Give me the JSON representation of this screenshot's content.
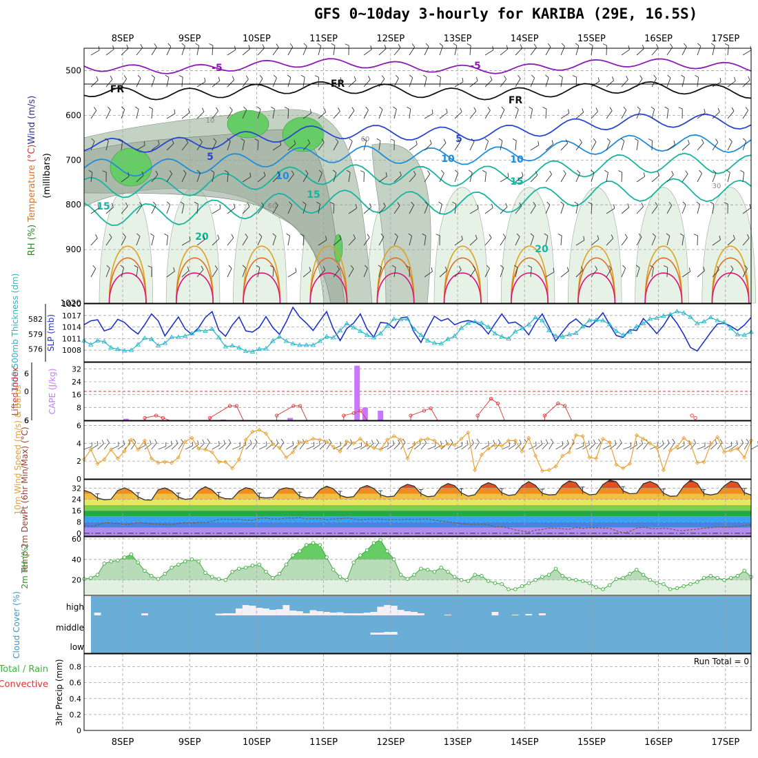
{
  "title": "GFS 0~10day 3-hourly for KARIBA (29E, 16.5S)",
  "dates": [
    "8SEP",
    "9SEP",
    "10SEP",
    "11SEP",
    "12SEP",
    "13SEP",
    "14SEP",
    "15SEP",
    "16SEP",
    "17SEP"
  ],
  "colors": {
    "grid": "#a0a0a0",
    "rh_light": "#e6f2e6",
    "rh_mid": "#c4d2c4",
    "rh_dark": "#9aa89a",
    "rh_green": "#66cc66",
    "temp_purple": "#8a1ab5",
    "temp_blue": "#2846d2",
    "temp_lightblue": "#1e8cdc",
    "temp_teal": "#14b4a0",
    "temp_orange": "#e0a020",
    "temp_red": "#e07020",
    "temp_magenta": "#dc1478",
    "slp": "#1e32c8",
    "thickness": "#28b4c8",
    "cape": "#c878ff",
    "lifted": "#e03030",
    "wind10m": "#e8a030",
    "rh2m": "#3caa3c",
    "cloud": "#6aaed8",
    "precip_total": "#3cb43c",
    "precip_conv": "#e03030"
  },
  "chart_data": [
    {
      "type": "heatmap",
      "panel": "cross-section",
      "ylabel_parts": [
        {
          "text": "RH (%)",
          "color": "#2c8c2c"
        },
        {
          "text": " Temperature",
          "color": "#e07020"
        },
        {
          "text": " (°C)",
          "color": "#e03030"
        },
        {
          "text": "Wind (m/s)",
          "color": "#3030a0"
        }
      ],
      "ylabel_unit": "(millibars)",
      "yticks": [
        500,
        600,
        700,
        800,
        900,
        1020
      ],
      "ylim": [
        1020,
        450
      ],
      "temperature_contours": [
        {
          "label": "-5",
          "level": 490,
          "color": "#8a1ab5"
        },
        {
          "label": "FR",
          "level": 545,
          "color": "#111111"
        },
        {
          "label": "5",
          "level": 665,
          "color": "#2846d2"
        },
        {
          "label": "10",
          "level": 715,
          "color": "#1e8cdc"
        },
        {
          "label": "15",
          "level": 760,
          "color": "#14b4a0"
        },
        {
          "label": "20",
          "level": 820,
          "color": "#14b4a0"
        }
      ],
      "contour_labels": [
        "-5",
        "-5",
        "FR",
        "FR",
        "FR",
        "5",
        "5",
        "10",
        "10",
        "10",
        "15",
        "15",
        "15",
        "20",
        "20",
        "10",
        "60",
        "60",
        "30"
      ]
    },
    {
      "type": "line",
      "panel": "slp-thickness",
      "ylabel_left": "1000-500mb Thickness (dm)",
      "ylabel_right": "SLP (mb)",
      "left_ticks": [
        576,
        579,
        582
      ],
      "right_ticks": [
        1008,
        1011,
        1014,
        1017,
        1020
      ],
      "series": [
        {
          "name": "SLP (mb)",
          "values": [
            1014.6,
            1015.6,
            1015.9,
            1013.0,
            1013.6,
            1016.0,
            1015.2,
            1013.5,
            1012.2,
            1014.6,
            1017.4,
            1015.6,
            1011.7,
            1014.2,
            1016.6,
            1013.5,
            1012.1,
            1013.8,
            1016.5,
            1018.0,
            1013.2,
            1011.6,
            1014.5,
            1016.6,
            1013.0,
            1012.7,
            1013.9,
            1016.7,
            1013.9,
            1012.1,
            1015.3,
            1019.1,
            1016.6,
            1015.0,
            1013.1,
            1015.6,
            1018.0,
            1013.5,
            1010.5,
            1013.6,
            1015.0,
            1017.4,
            1013.5,
            1011.4,
            1015.2,
            1015.0,
            1013.7,
            1016.4,
            1016.6,
            1012.6,
            1010.0,
            1013.6,
            1016.8,
            1015.6,
            1016.2,
            1014.6,
            1015.3,
            1015.7,
            1015.3,
            1014.3,
            1012.2,
            1014.9,
            1017.4,
            1015.0,
            1015.3,
            1014.1,
            1012.0,
            1015.1,
            1017.4,
            1014.0,
            1010.4,
            1012.7,
            1014.9,
            1016.1,
            1014.5,
            1014.0,
            1015.6,
            1017.7,
            1014.6,
            1011.8,
            1011.3,
            1013.3,
            1013.1,
            1016.2,
            1014.4,
            1012.3,
            1014.4,
            1017.2,
            1015.0,
            1012.1,
            1008.7,
            1007.8,
            1010.2,
            1012.6,
            1014.8,
            1015.0,
            1014.2,
            1013.1,
            1014.5,
            1016.5
          ]
        },
        {
          "name": "1000-500mb Thickness (dm)",
          "values": [
            577.7,
            576.9,
            577.7,
            577.5,
            576.3,
            576.0,
            575.7,
            575.8,
            576.9,
            578.2,
            578.0,
            576.7,
            577.2,
            578.4,
            578.4,
            578.6,
            579.1,
            579.8,
            579.6,
            580.0,
            578.3,
            576.5,
            576.7,
            576.3,
            575.6,
            575.5,
            576.0,
            576.1,
            577.6,
            578.5,
            577.6,
            577.1,
            576.8,
            576.8,
            576.8,
            577.6,
            578.5,
            578.3,
            579.7,
            581.1,
            580.3,
            579.6,
            578.8,
            578.3,
            579.1,
            580.6,
            582.0,
            581.9,
            582.0,
            580.0,
            578.8,
            577.7,
            577.2,
            577.1,
            578.0,
            578.6,
            580.2,
            581.2,
            581.5,
            581.2,
            580.4,
            579.1,
            578.5,
            578.1,
            579.5,
            580.1,
            580.9,
            582.3,
            581.7,
            579.7,
            578.6,
            578.5,
            578.9,
            579.2,
            580.5,
            581.7,
            581.8,
            581.7,
            580.9,
            579.6,
            578.8,
            579.4,
            580.5,
            581.1,
            582.0,
            582.2,
            582.6,
            582.9,
            583.5,
            583.2,
            582.4,
            581.1,
            581.5,
            582.3,
            581.7,
            581.3,
            580.1,
            578.9,
            578.8,
            579.4
          ]
        }
      ]
    },
    {
      "type": "bar",
      "panel": "lifted-cape",
      "ylabel_left": "Lifted Index",
      "ylabel_right": "CAPE (J/kg)",
      "li_ticks": [
        "6",
        "0",
        "6",
        "6"
      ],
      "cape_ticks": [
        8,
        16,
        24,
        32
      ],
      "cape_bars": [
        {
          "day": 0.05,
          "value": 1
        },
        {
          "day": 1.5,
          "value": 0.5
        },
        {
          "day": 2.5,
          "value": 1.5
        },
        {
          "day": 3.5,
          "value": 34
        },
        {
          "day": 3.62,
          "value": 8
        },
        {
          "day": 3.85,
          "value": 6
        }
      ],
      "lifted_index": [
        {
          "day": 0.33,
          "value": 5.5
        },
        {
          "day": 0.5,
          "value": 5
        },
        {
          "day": 0.6,
          "value": 5.5
        },
        {
          "day": 1.3,
          "value": 5.5
        },
        {
          "day": 1.6,
          "value": 3
        },
        {
          "day": 1.7,
          "value": 3
        },
        {
          "day": 2.3,
          "value": 5
        },
        {
          "day": 2.55,
          "value": 3
        },
        {
          "day": 2.65,
          "value": 3
        },
        {
          "day": 3.3,
          "value": 5
        },
        {
          "day": 3.45,
          "value": 4.5
        },
        {
          "day": 3.55,
          "value": 4
        },
        {
          "day": 4.3,
          "value": 5
        },
        {
          "day": 4.5,
          "value": 4
        },
        {
          "day": 4.6,
          "value": 3.5
        },
        {
          "day": 5.3,
          "value": 5
        },
        {
          "day": 5.5,
          "value": 1.5
        },
        {
          "day": 5.6,
          "value": 2.5
        },
        {
          "day": 6.3,
          "value": 5
        },
        {
          "day": 6.5,
          "value": 2.5
        },
        {
          "day": 6.6,
          "value": 3
        },
        {
          "day": 8.5,
          "value": 5
        },
        {
          "day": 8.55,
          "value": 5.5
        }
      ]
    },
    {
      "type": "line",
      "panel": "wind10m",
      "ylabel": "10m Wind Speed (m/s) & Barbs",
      "yticks": [
        0,
        2,
        4,
        6
      ],
      "ylim": [
        0,
        6.5
      ],
      "values": [
        2.2,
        3.3,
        1.7,
        2.2,
        3.3,
        2.3,
        3.1,
        4.4,
        3.3,
        4.3,
        2.3,
        1.8,
        1.9,
        1.8,
        2.4,
        4.2,
        4.6,
        3.4,
        3.3,
        3.0,
        1.9,
        1.9,
        1.2,
        2.2,
        4.4,
        5.3,
        5.5,
        5.1,
        3.9,
        3.5,
        2.4,
        3.0,
        4.1,
        4.2,
        4.5,
        4.4,
        4.2,
        3.6,
        3.1,
        4.2,
        4.0,
        4.5,
        3.8,
        3.5,
        3.3,
        4.4,
        4.8,
        4.4,
        2.3,
        3.9,
        4.4,
        4.5,
        4.3,
        3.6,
        3.9,
        3.8,
        4.5,
        5.2,
        1.0,
        2.7,
        3.4,
        3.8,
        3.7,
        4.3,
        4.3,
        3.1,
        4.6,
        2.6,
        0.9,
        1.0,
        1.4,
        2.6,
        3.0,
        4.9,
        4.8,
        2.4,
        2.3,
        4.5,
        4.1,
        1.6,
        1.2,
        1.7,
        4.9,
        4.5,
        4.0,
        3.5,
        1.0,
        3.2,
        3.6,
        4.6,
        4.0,
        1.8,
        1.9,
        3.9,
        4.7,
        3.0,
        3.2,
        3.4,
        2.4,
        4.3
      ]
    },
    {
      "type": "area",
      "panel": "temp2m",
      "ylabel": "2m Temp 2m DewPt (6hr Min/Max) (°C)",
      "yticks": [
        0,
        8,
        16,
        24,
        32
      ],
      "ylim": [
        -2,
        38
      ],
      "temperature": [
        30.4,
        28.8,
        25.0,
        23.7,
        24.1,
        30.3,
        32.2,
        30.0,
        25.8,
        23.6,
        23.5,
        30.8,
        32.1,
        29.9,
        25.6,
        24.0,
        24.6,
        30.2,
        33.0,
        30.6,
        26.0,
        24.5,
        24.4,
        29.8,
        32.3,
        31.1,
        25.6,
        25.0,
        25.4,
        31.0,
        32.2,
        31.3,
        26.2,
        25.1,
        25.3,
        30.8,
        33.3,
        31.5,
        26.8,
        25.4,
        25.9,
        32.0,
        33.9,
        31.7,
        27.2,
        25.8,
        26.3,
        32.4,
        34.7,
        33.3,
        28.0,
        25.9,
        26.4,
        32.8,
        35.2,
        33.7,
        28.6,
        26.3,
        27.3,
        33.5,
        35.8,
        34.1,
        28.7,
        26.8,
        27.4,
        33.6,
        36.6,
        33.9,
        28.3,
        27.1,
        27.4,
        33.9,
        37.0,
        35.9,
        29.8,
        27.2,
        27.7,
        34.5,
        37.6,
        36.5,
        30.1,
        28.0,
        28.3,
        35.0,
        36.7,
        34.6,
        28.4,
        26.2,
        26.4,
        33.4,
        37.6,
        35.3,
        28.0,
        27.1,
        28.1,
        33.5,
        36.9,
        35.8,
        28.8,
        27.0
      ],
      "dewpoint": [
        5.5,
        5.0,
        5.7,
        7.6,
        7.3,
        6.9,
        6.2,
        6.7,
        7.6,
        7.1,
        6.6,
        6.6,
        6.3,
        6.2,
        7.0,
        7.5,
        7.2,
        7.8,
        7.6,
        8.6,
        9.9,
        10.1,
        9.8,
        10.0,
        9.3,
        9.1,
        10.6,
        10.8,
        10.0,
        10.1,
        10.8,
        10.7,
        11.1,
        10.2,
        10.3,
        10.4,
        9.7,
        10.1,
        10.4,
        10.8,
        10.2,
        9.5,
        10.0,
        10.0,
        10.1,
        9.6,
        9.8,
        9.7,
        10.0,
        9.9,
        10.0,
        10.2,
        9.3,
        8.6,
        8.1,
        7.4,
        6.7,
        6.6,
        6.2,
        6.6,
        6.0,
        4.5,
        4.7,
        3.6,
        2.4,
        1.6,
        0.9,
        2.2,
        2.7,
        3.6,
        3.6,
        3.1,
        2.9,
        4.1,
        3.4,
        3.9,
        3.8,
        3.6,
        3.5,
        1.8,
        0.3,
        1.3,
        3.6,
        4.3,
        3.4,
        3.1,
        3.4,
        3.1,
        2.1,
        1.9,
        2.5,
        2.9,
        3.6,
        3.9,
        4.6,
        4.3,
        4.4,
        4.7,
        5.5,
        5.9
      ]
    },
    {
      "type": "area",
      "panel": "rh2m",
      "ylabel": "2m RH (%)",
      "yticks": [
        20,
        40,
        60
      ],
      "ylim": [
        5,
        62
      ],
      "values": [
        21,
        22,
        25,
        36,
        38,
        39,
        42,
        45,
        37,
        29,
        24,
        21,
        26,
        32,
        35,
        38,
        40,
        38,
        27,
        23,
        21,
        20,
        28,
        31,
        32,
        34,
        35,
        28,
        22,
        26,
        35,
        44,
        48,
        54,
        56,
        54,
        42,
        30,
        23,
        20,
        37,
        44,
        49,
        56,
        59,
        48,
        40,
        25,
        21,
        25,
        31,
        30,
        28,
        32,
        28,
        23,
        20,
        19,
        25,
        24,
        19,
        17,
        16,
        11,
        11,
        14,
        17,
        20,
        23,
        25,
        31,
        24,
        21,
        20,
        19,
        17,
        13,
        11,
        15,
        21,
        22,
        26,
        30,
        25,
        20,
        17,
        16,
        11,
        12,
        14,
        16,
        18,
        22,
        24,
        22,
        20,
        22,
        24,
        29,
        23
      ]
    },
    {
      "type": "heatmap",
      "panel": "cloud",
      "ylabel": "Cloud Cover (%)",
      "row_labels": [
        "high",
        "middle",
        "low"
      ],
      "high": [
        0,
        0,
        8,
        0,
        0,
        0,
        0,
        0,
        0,
        6,
        0,
        0,
        0,
        0,
        0,
        0,
        0,
        0,
        0,
        0,
        5,
        6,
        6,
        20,
        30,
        28,
        22,
        20,
        16,
        18,
        30,
        14,
        12,
        6,
        15,
        12,
        10,
        8,
        9,
        6,
        6,
        6,
        8,
        10,
        25,
        30,
        28,
        16,
        12,
        10,
        6,
        0,
        0,
        0,
        2,
        0,
        0,
        0,
        0,
        0,
        0,
        10,
        0,
        0,
        2,
        0,
        4,
        0,
        6,
        0,
        0,
        0,
        0,
        0,
        0,
        0,
        0,
        0,
        0,
        0,
        0,
        0,
        0,
        0,
        0,
        0,
        0,
        0,
        0,
        0,
        0,
        0,
        0,
        0,
        0,
        0,
        0,
        0,
        0,
        0
      ],
      "middle": [
        0,
        0,
        0,
        0,
        0,
        0,
        0,
        0,
        0,
        0,
        0,
        0,
        0,
        0,
        0,
        0,
        0,
        0,
        0,
        0,
        0,
        0,
        0,
        0,
        0,
        0,
        0,
        0,
        0,
        0,
        0,
        0,
        0,
        0,
        0,
        0,
        0,
        0,
        0,
        0,
        0,
        0,
        0,
        6,
        6,
        8,
        8,
        0,
        0,
        0,
        0,
        0,
        0,
        0,
        0,
        0,
        0,
        0,
        0,
        0,
        0,
        0,
        0,
        0,
        0,
        0,
        0,
        0,
        0,
        0,
        0,
        0,
        0,
        0,
        0,
        0,
        0,
        0,
        0,
        0,
        0,
        0,
        0,
        0,
        0,
        0,
        0,
        0,
        0,
        0,
        0,
        0,
        0,
        0,
        0,
        0,
        0,
        0,
        0,
        0
      ],
      "low": [
        0,
        0,
        0,
        0,
        0,
        0,
        0,
        0,
        0,
        0,
        0,
        0,
        0,
        0,
        0,
        0,
        0,
        0,
        0,
        0,
        0,
        0,
        0,
        0,
        0,
        0,
        0,
        0,
        0,
        0,
        0,
        0,
        0,
        0,
        0,
        0,
        0,
        0,
        0,
        0,
        0,
        0,
        0,
        0,
        0,
        0,
        0,
        0,
        0,
        0,
        0,
        0,
        0,
        0,
        0,
        0,
        0,
        0,
        0,
        0,
        0,
        0,
        0,
        0,
        0,
        0,
        0,
        0,
        0,
        0,
        0,
        0,
        0,
        0,
        0,
        0,
        0,
        0,
        0,
        0,
        0,
        0,
        0,
        0,
        0,
        0,
        0,
        0,
        0,
        0,
        0,
        0,
        0,
        0,
        0,
        0,
        0,
        0,
        0,
        0
      ]
    },
    {
      "type": "bar",
      "panel": "precip",
      "ylabel": "3hr Precip (mm)",
      "legend": [
        {
          "text": "Total / Rain",
          "color": "#3cb43c"
        },
        {
          "text": "Convective",
          "color": "#e03030"
        }
      ],
      "yticks": [
        0,
        0.2,
        0.4,
        0.6,
        0.8
      ],
      "ylim": [
        0,
        0.96
      ],
      "values": [],
      "run_total_label": "Run Total = 0"
    }
  ]
}
